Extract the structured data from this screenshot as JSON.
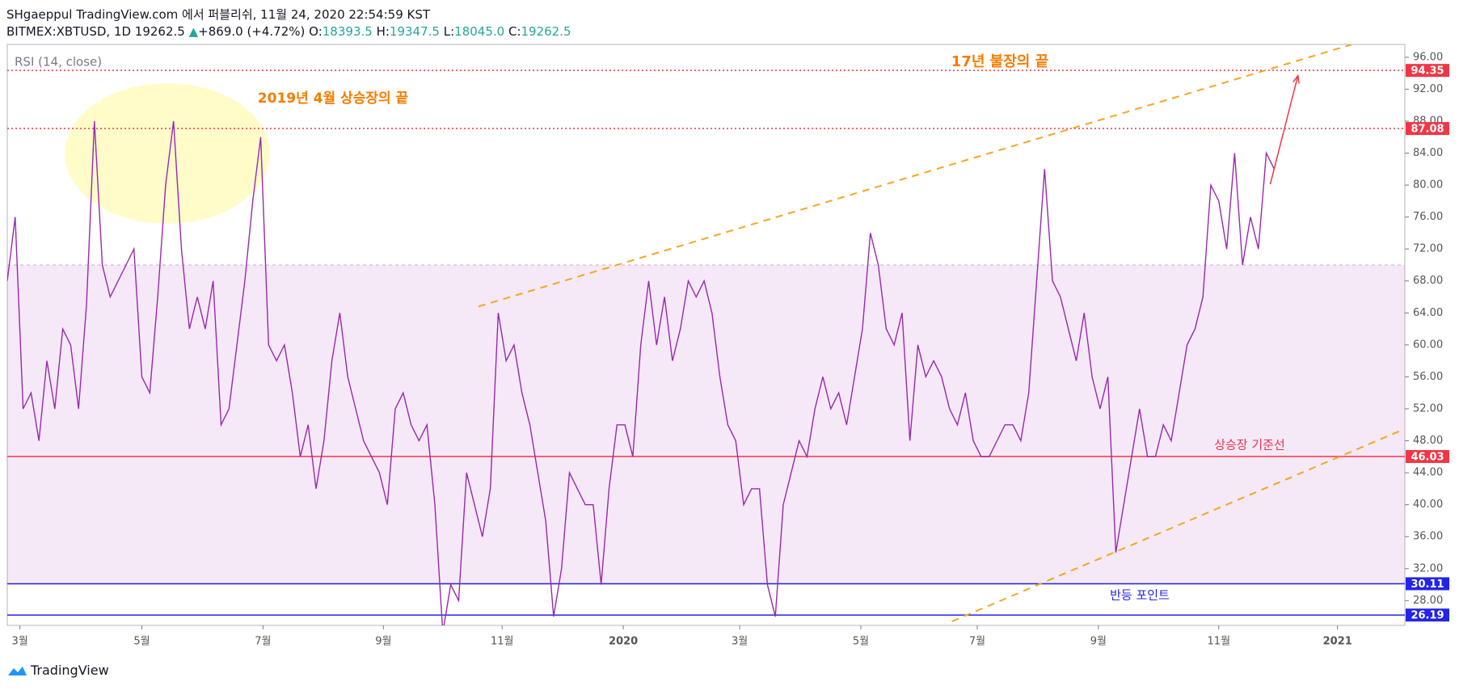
{
  "header": {
    "publish": "SHgaeppul TradingView.com 에서 퍼블리쉬, 11월 24, 2020 22:54:59 KST",
    "symbol": "BITMEX:XBTUSD, 1D 19262.5",
    "arrow": "▲",
    "change": "+869.0 (+4.72%)",
    "o_label": "O:",
    "o": "18393.5",
    "h_label": "H:",
    "h": "19347.5",
    "l_label": "L:",
    "l": "18045.0",
    "c_label": "C:",
    "c": "19262.5"
  },
  "logo": "TradingView",
  "chart_data": {
    "type": "line",
    "indicator_label": "RSI (14, close)",
    "series": [
      {
        "name": "RSI",
        "color": "#9c27b0",
        "values": [
          68,
          76,
          52,
          54,
          48,
          58,
          52,
          62,
          60,
          52,
          65,
          88,
          70,
          66,
          68,
          70,
          72,
          56,
          54,
          66,
          80,
          88,
          72,
          62,
          66,
          62,
          68,
          50,
          52,
          60,
          68,
          78,
          86,
          60,
          58,
          60,
          54,
          46,
          50,
          42,
          48,
          58,
          64,
          56,
          52,
          48,
          46,
          44,
          40,
          52,
          54,
          50,
          48,
          50,
          40,
          24,
          30,
          28,
          44,
          40,
          36,
          42,
          64,
          58,
          60,
          54,
          50,
          44,
          38,
          26,
          32,
          44,
          42,
          40,
          40,
          30,
          42,
          50,
          50,
          46,
          60,
          68,
          60,
          66,
          58,
          62,
          68,
          66,
          68,
          64,
          56,
          50,
          48,
          40,
          42,
          42,
          30,
          26,
          40,
          44,
          48,
          46,
          52,
          56,
          52,
          54,
          50,
          56,
          62,
          74,
          70,
          62,
          60,
          64,
          48,
          60,
          56,
          58,
          56,
          52,
          50,
          54,
          48,
          46,
          46,
          48,
          50,
          50,
          48,
          54,
          68,
          82,
          68,
          66,
          62,
          58,
          64,
          56,
          52,
          56,
          34,
          40,
          46,
          52,
          46,
          46,
          50,
          48,
          54,
          60,
          62,
          66,
          80,
          78,
          72,
          84,
          70,
          76,
          72,
          84,
          82
        ]
      }
    ],
    "xlim": [
      0,
      176.5
    ],
    "xticks": [
      {
        "value": 1.6,
        "label": "3월"
      },
      {
        "value": 17,
        "label": "5월"
      },
      {
        "value": 32.3,
        "label": "7월"
      },
      {
        "value": 47.5,
        "label": "9월"
      },
      {
        "value": 62.5,
        "label": "11월"
      },
      {
        "value": 77.8,
        "label": "2020"
      },
      {
        "value": 92.5,
        "label": "3월"
      },
      {
        "value": 107.8,
        "label": "5월"
      },
      {
        "value": 122.5,
        "label": "7월"
      },
      {
        "value": 137.8,
        "label": "9월"
      },
      {
        "value": 153,
        "label": "11월"
      },
      {
        "value": 168,
        "label": "2021"
      }
    ],
    "ylim": [
      24.9,
      97.6
    ],
    "yticks": [
      {
        "value": 28,
        "label": "28.00"
      },
      {
        "value": 32,
        "label": "32.00"
      },
      {
        "value": 36,
        "label": "36.00"
      },
      {
        "value": 40,
        "label": "40.00"
      },
      {
        "value": 44,
        "label": "44.00"
      },
      {
        "value": 48,
        "label": "48.00"
      },
      {
        "value": 52,
        "label": "52.00"
      },
      {
        "value": 56,
        "label": "56.00"
      },
      {
        "value": 60,
        "label": "60.00"
      },
      {
        "value": 64,
        "label": "64.00"
      },
      {
        "value": 68,
        "label": "68.00"
      },
      {
        "value": 72,
        "label": "72.00"
      },
      {
        "value": 76,
        "label": "76.00"
      },
      {
        "value": 80,
        "label": "80.00"
      },
      {
        "value": 84,
        "label": "84.00"
      },
      {
        "value": 88,
        "label": "88.00"
      },
      {
        "value": 92,
        "label": "92.00"
      },
      {
        "value": 96,
        "label": "96.00"
      }
    ],
    "band": [
      30,
      70
    ],
    "levels": [
      {
        "value": 94.35,
        "color": "#f23645",
        "dash": "2 3"
      },
      {
        "value": 87.08,
        "color": "#f23645",
        "dash": "2 3"
      },
      {
        "value": 46.03,
        "color": "#f23645",
        "dash": "none"
      },
      {
        "value": 30.11,
        "color": "#2424e8",
        "dash": "none"
      },
      {
        "value": 26.19,
        "color": "#2424e8",
        "dash": "none"
      }
    ],
    "trendlines": [
      {
        "x": [
          59.5,
          169.8
        ],
        "y": [
          64.8,
          97.6
        ]
      },
      {
        "x": [
          119.3,
          176.3
        ],
        "y": [
          25.4,
          49.4
        ]
      }
    ],
    "arrow": {
      "x": [
        159.5,
        163
      ],
      "y": [
        80.1,
        93.7
      ]
    },
    "annotations": [
      "17년 불장의 끝",
      "2019년 4월 상승장의 끝",
      "상승장 기준선",
      "반등 포인트"
    ]
  }
}
